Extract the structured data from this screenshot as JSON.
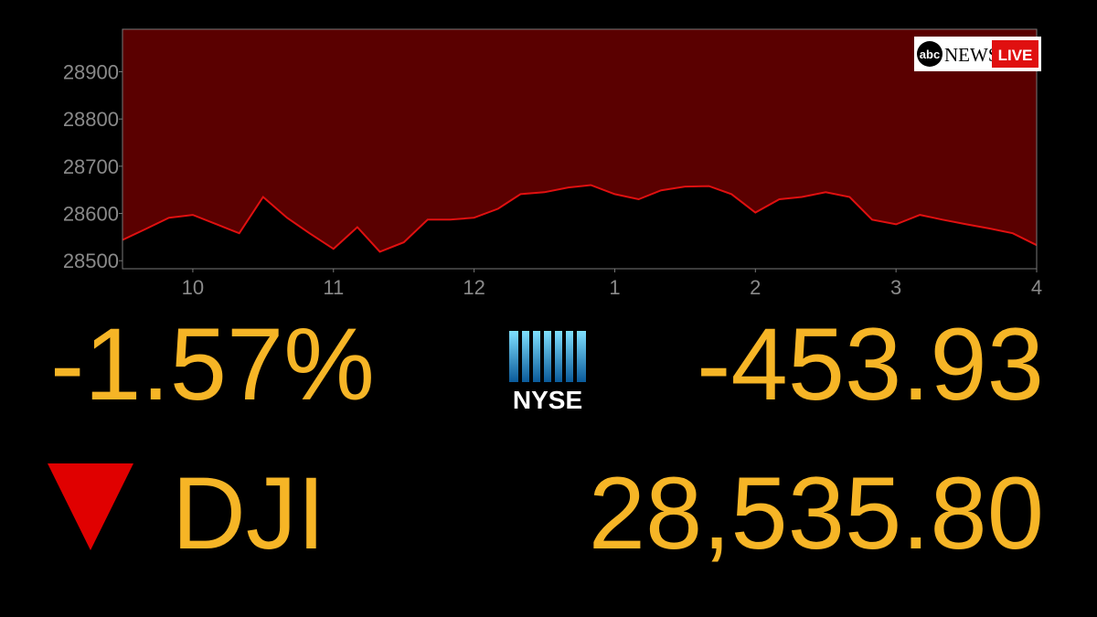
{
  "chart_data": {
    "type": "area",
    "x": [
      9.5,
      9.67,
      9.83,
      10.0,
      10.17,
      10.33,
      10.5,
      10.67,
      10.83,
      11.0,
      11.17,
      11.33,
      11.5,
      11.67,
      11.83,
      12.0,
      12.17,
      12.33,
      12.5,
      12.67,
      12.83,
      13.0,
      13.17,
      13.33,
      13.5,
      13.67,
      13.83,
      14.0,
      14.17,
      14.33,
      14.5,
      14.67,
      14.83,
      15.0,
      15.17,
      15.33,
      15.5,
      15.67,
      15.83,
      16.0
    ],
    "series": [
      {
        "color": "#e01010",
        "area_color": "#5a0000",
        "values": [
          28544,
          28568,
          28591,
          28597,
          28577,
          28558,
          28635,
          28591,
          28558,
          28525,
          28571,
          28519,
          28539,
          28587,
          28587,
          28591,
          28610,
          28641,
          28645,
          28655,
          28660,
          28641,
          28630,
          28649,
          28657,
          28658,
          28641,
          28602,
          28630,
          28635,
          28645,
          28635,
          28587,
          28577,
          28597,
          28587,
          28577,
          28568,
          28558,
          28533
        ]
      }
    ],
    "xlim": [
      9.5,
      16
    ],
    "xticks": [
      10,
      11,
      12,
      {
        "value": 13,
        "label": "1"
      },
      {
        "value": 14,
        "label": "2"
      },
      {
        "value": 15,
        "label": "3"
      },
      {
        "value": 16,
        "label": "4"
      }
    ],
    "ylim": [
      28483,
      28990
    ],
    "yticks": [
      28500,
      28600,
      28700,
      28800,
      28900
    ]
  },
  "ticker": {
    "percent_change": "-1.57%",
    "exchange": "NYSE",
    "point_change": "-453.93",
    "symbol": "DJI",
    "price": "28,535.80"
  },
  "logo": {
    "brand": "abc",
    "network": "NEWS",
    "status": "LIVE"
  }
}
